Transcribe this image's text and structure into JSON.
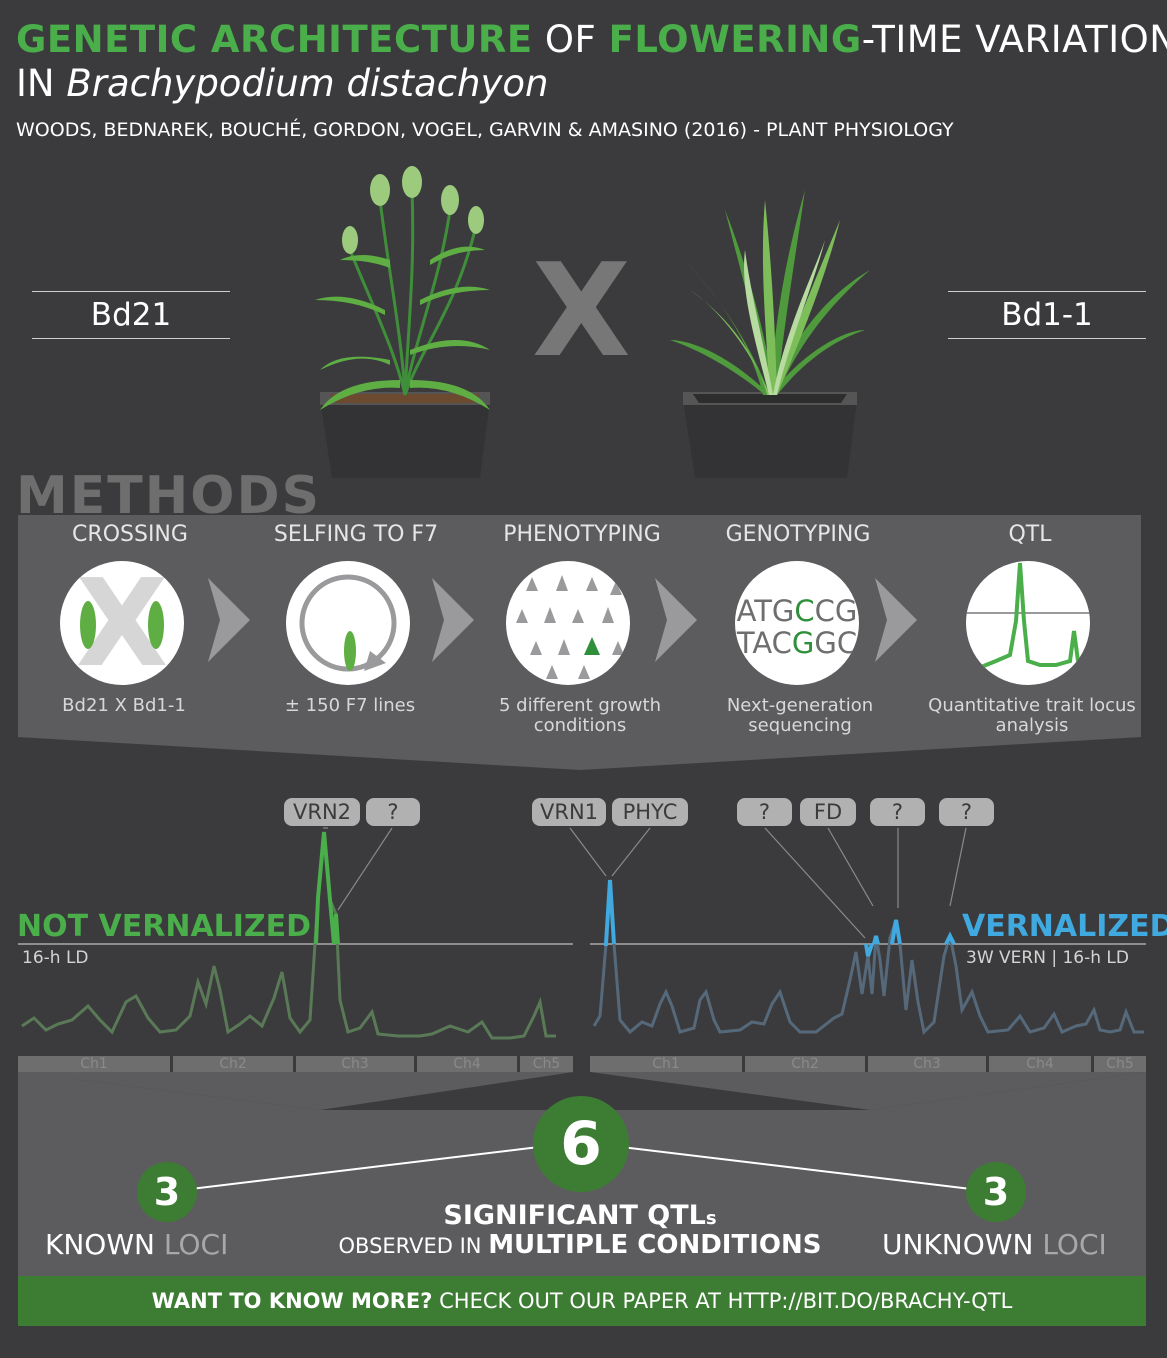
{
  "title": {
    "part1": "GENETIC ARCHITECTURE",
    "part2": " OF ",
    "part3": "FLOWERING",
    "part4": "-TIME VARIATION",
    "line2_prefix": "IN ",
    "species": "Brachypodium distachyon"
  },
  "authors": "WOODS, BEDNAREK, BOUCHÉ, GORDON, VOGEL, GARVIN & AMASINO (2016) - PLANT PHYSIOLOGY",
  "parents": {
    "left": "Bd21",
    "cross": "X",
    "right": "Bd1-1"
  },
  "methods": {
    "title": "METHODS",
    "steps": [
      {
        "label": "CROSSING",
        "caption": "Bd21 X Bd1-1"
      },
      {
        "label": "SELFING TO F7",
        "caption": "± 150 F7 lines"
      },
      {
        "label": "PHENOTYPING",
        "caption": "5 different growth conditions"
      },
      {
        "label": "GENOTYPING",
        "caption": "Next-generation sequencing",
        "dna_top": "ATGCCG",
        "dna_bottom": "TACGGC"
      },
      {
        "label": "QTL",
        "caption": "Quantitative trait locus analysis"
      }
    ]
  },
  "qtl_labels": [
    "VRN2",
    "?",
    "VRN1",
    "PHYC",
    "?",
    "FD",
    "?",
    "?"
  ],
  "conditions": {
    "left_title": "NOT VERNALIZED",
    "left_sub": "16-h LD",
    "right_title": "VERNALIZED",
    "right_sub": "3W VERN | 16-h LD"
  },
  "chromosomes": [
    "Ch1",
    "Ch2",
    "Ch3",
    "Ch4",
    "Ch5"
  ],
  "summary": {
    "total": "6",
    "known_count": "3",
    "known_word": "KNOWN",
    "known_loci": " LOCI",
    "unknown_count": "3",
    "unknown_word": "UNKNOWN",
    "unknown_loci": " LOCI",
    "significant": "SIGNIFICANT QTL",
    "significant_s": "s",
    "observed": "OBSERVED IN ",
    "multiple": "MULTIPLE CONDITIONS"
  },
  "footer": {
    "bold": "WANT TO KNOW MORE?",
    "rest": " CHECK OUT OUR PAPER AT HTTP://BIT.DO/BRACHY-QTL"
  },
  "colors": {
    "background": "#3b3b3d",
    "green": "#4aae4a",
    "dark_green": "#3d7d33",
    "blue": "#3fa9e0",
    "grey_panel": "#5c5c5e"
  }
}
